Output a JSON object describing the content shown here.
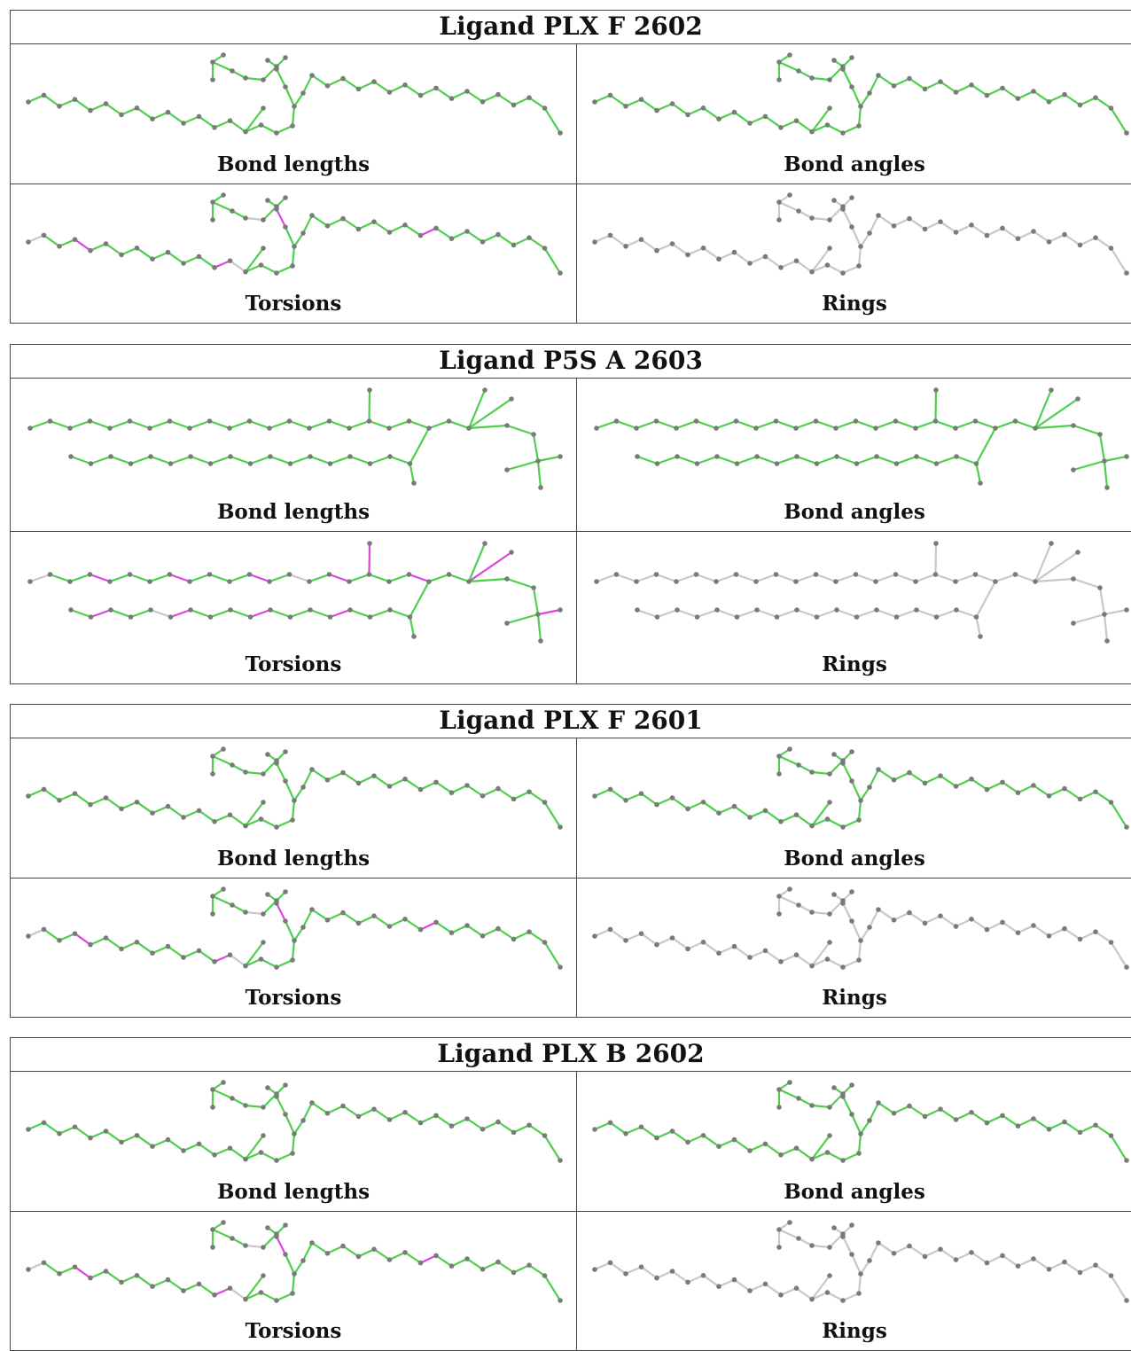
{
  "panel_labels": {
    "lengths": "Bond lengths",
    "angles": "Bond angles",
    "torsions": "Torsions",
    "rings": "Rings"
  },
  "colors": {
    "ok": "#4cd04c",
    "outlier": "#dd44dd",
    "unchecked": "#c8c8c8",
    "atom": "#7a7a7a",
    "frame": "#444444"
  },
  "ligands": [
    {
      "title": "Ligand PLX F 2602",
      "torsion_outliers": "some"
    },
    {
      "title": "Ligand P5S A 2603",
      "torsion_outliers": "many"
    },
    {
      "title": "Ligand PLX F 2601",
      "torsion_outliers": "some"
    },
    {
      "title": "Ligand PLX B 2602",
      "torsion_outliers": "some"
    }
  ]
}
